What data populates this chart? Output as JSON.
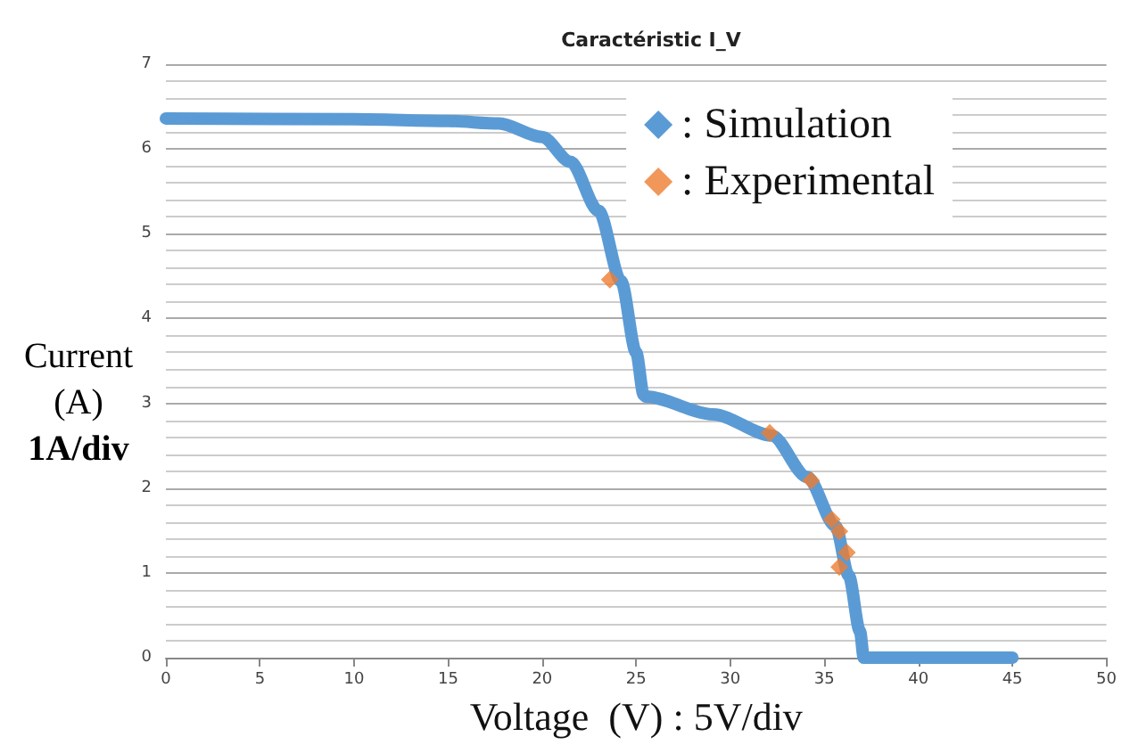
{
  "chart_data": {
    "type": "line",
    "title": "Caractéristic I_V",
    "xlabel": "Voltage  (V) : 5V/div",
    "ylabel": "Current\n(A)\n1A/div",
    "xlim": [
      0,
      50
    ],
    "xticks": [
      0,
      5,
      10,
      15,
      20,
      25,
      30,
      35,
      40,
      45,
      50
    ],
    "ylim": [
      0,
      7
    ],
    "yticks": [
      0,
      1,
      2,
      3,
      4,
      5,
      6,
      7
    ],
    "grid": "y",
    "legend": "top right",
    "marker": "diamond",
    "series": [
      {
        "name": ": Simulation",
        "color": "#5b9bd5",
        "marker": "none",
        "x": [
          0,
          10,
          15,
          17.7,
          20,
          21.5,
          23,
          24.2,
          25,
          25.4,
          25.5,
          29.1,
          32.2,
          34.1,
          35.6,
          36.3,
          36.9,
          37.1,
          45
        ],
        "values": [
          6.36,
          6.35,
          6.33,
          6.3,
          6.14,
          5.85,
          5.27,
          4.44,
          3.6,
          3.1,
          3.08,
          2.87,
          2.62,
          2.13,
          1.55,
          0.97,
          0.31,
          0,
          0
        ]
      },
      {
        "name": ": Experimental",
        "color": "#ed7d31",
        "type": "scatter",
        "x": [
          23.6,
          32.1,
          34.3,
          35.4,
          35.8,
          36.2,
          35.8
        ],
        "values": [
          4.46,
          2.65,
          2.09,
          1.63,
          1.49,
          1.24,
          1.07
        ]
      }
    ]
  }
}
